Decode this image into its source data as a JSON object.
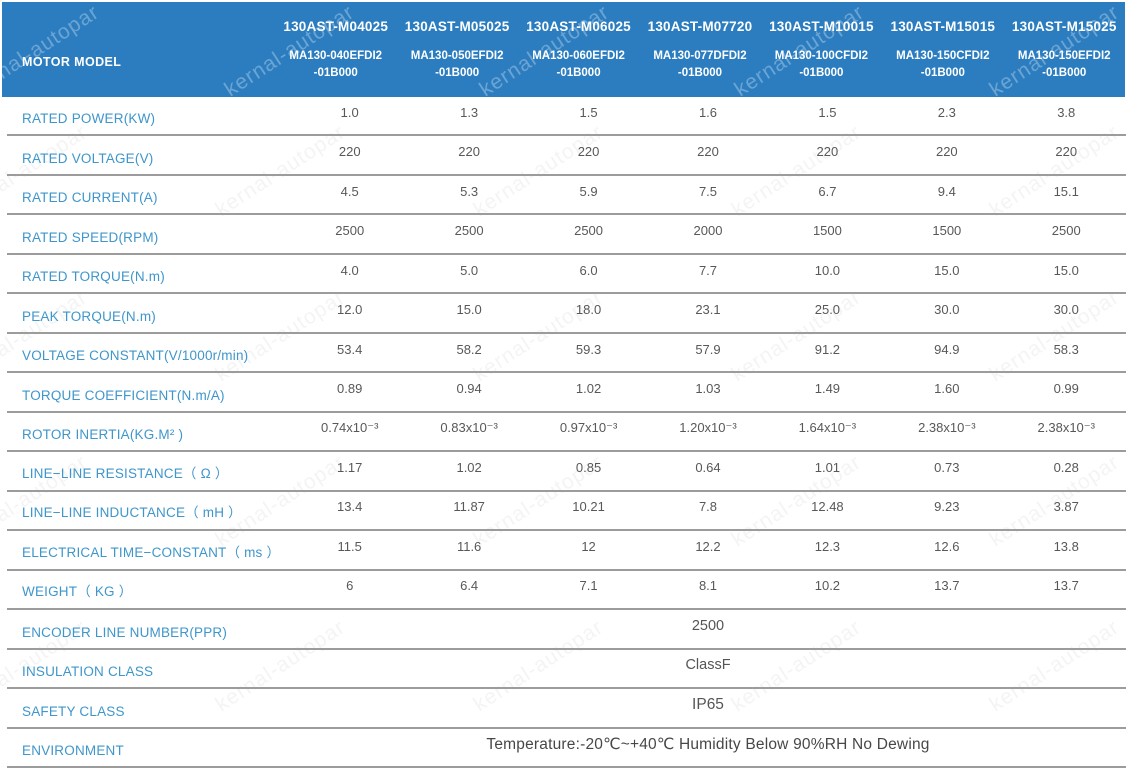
{
  "watermark": {
    "text": "kernal-autopar"
  },
  "header": {
    "label": "MOTOR MODEL",
    "columns": [
      {
        "model": "130AST-M04025",
        "sub1": "MA130-040EFDI2",
        "sub2": "-01B000"
      },
      {
        "model": "130AST-M05025",
        "sub1": "MA130-050EFDI2",
        "sub2": "-01B000"
      },
      {
        "model": "130AST-M06025",
        "sub1": "MA130-060EFDI2",
        "sub2": "-01B000"
      },
      {
        "model": "130AST-M07720",
        "sub1": "MA130-077DFDI2",
        "sub2": "-01B000"
      },
      {
        "model": "130AST-M10015",
        "sub1": "MA130-100CFDI2",
        "sub2": "-01B000"
      },
      {
        "model": "130AST-M15015",
        "sub1": "MA130-150CFDI2",
        "sub2": "-01B000"
      },
      {
        "model": "130AST-M15025",
        "sub1": "MA130-150EFDI2",
        "sub2": "-01B000"
      }
    ]
  },
  "rows": [
    {
      "label": "RATED POWER(KW)",
      "values": [
        "1.0",
        "1.3",
        "1.5",
        "1.6",
        "1.5",
        "2.3",
        "3.8"
      ]
    },
    {
      "label": "RATED VOLTAGE(V)",
      "values": [
        "220",
        "220",
        "220",
        "220",
        "220",
        "220",
        "220"
      ]
    },
    {
      "label": "RATED CURRENT(A)",
      "values": [
        "4.5",
        "5.3",
        "5.9",
        "7.5",
        "6.7",
        "9.4",
        "15.1"
      ]
    },
    {
      "label": "RATED SPEED(RPM)",
      "values": [
        "2500",
        "2500",
        "2500",
        "2000",
        "1500",
        "1500",
        "2500"
      ]
    },
    {
      "label": "RATED TORQUE(N.m)",
      "values": [
        "4.0",
        "5.0",
        "6.0",
        "7.7",
        "10.0",
        "15.0",
        "15.0"
      ]
    },
    {
      "label": "PEAK TORQUE(N.m)",
      "values": [
        "12.0",
        "15.0",
        "18.0",
        "23.1",
        "25.0",
        "30.0",
        "30.0"
      ]
    },
    {
      "label": "VOLTAGE CONSTANT(V/1000r/min)",
      "values": [
        "53.4",
        "58.2",
        "59.3",
        "57.9",
        "91.2",
        "94.9",
        "58.3"
      ]
    },
    {
      "label": "TORQUE COEFFICIENT(N.m/A)",
      "values": [
        "0.89",
        "0.94",
        "1.02",
        "1.03",
        "1.49",
        "1.60",
        "0.99"
      ]
    },
    {
      "label": "ROTOR INERTIA(KG.M² )",
      "values": [
        "0.74x10⁻³",
        "0.83x10⁻³",
        "0.97x10⁻³",
        "1.20x10⁻³",
        "1.64x10⁻³",
        "2.38x10⁻³",
        "2.38x10⁻³"
      ]
    },
    {
      "label": "LINE−LINE RESISTANCE（ Ω ）",
      "values": [
        "1.17",
        "1.02",
        "0.85",
        "0.64",
        "1.01",
        "0.73",
        "0.28"
      ]
    },
    {
      "label": "LINE−LINE INDUCTANCE（ mH ）",
      "values": [
        "13.4",
        "11.87",
        "10.21",
        "7.8",
        "12.48",
        "9.23",
        "3.87"
      ]
    },
    {
      "label": "ELECTRICAL TIME−CONSTANT（ ms ）",
      "values": [
        "11.5",
        "11.6",
        "12",
        "12.2",
        "12.3",
        "12.6",
        "13.8"
      ]
    },
    {
      "label": "WEIGHT（ KG ）",
      "values": [
        "6",
        "6.4",
        "7.1",
        "8.1",
        "10.2",
        "13.7",
        "13.7"
      ]
    },
    {
      "label": "ENCODER LINE NUMBER(PPR)",
      "span": "2500"
    },
    {
      "label": "INSULATION CLASS",
      "span": "ClassF"
    },
    {
      "label": "SAFETY CLASS",
      "span": "IP65"
    },
    {
      "label": "ENVIRONMENT",
      "span": "Temperature:-20℃~+40℃  Humidity Below 90%RH No Dewing"
    }
  ],
  "colors": {
    "header_bg": "#2b7dc0",
    "header_text": "#ffffff",
    "label_text": "#3e96cb",
    "value_text": "#58585a",
    "grid_line": "#9c9c9c"
  }
}
